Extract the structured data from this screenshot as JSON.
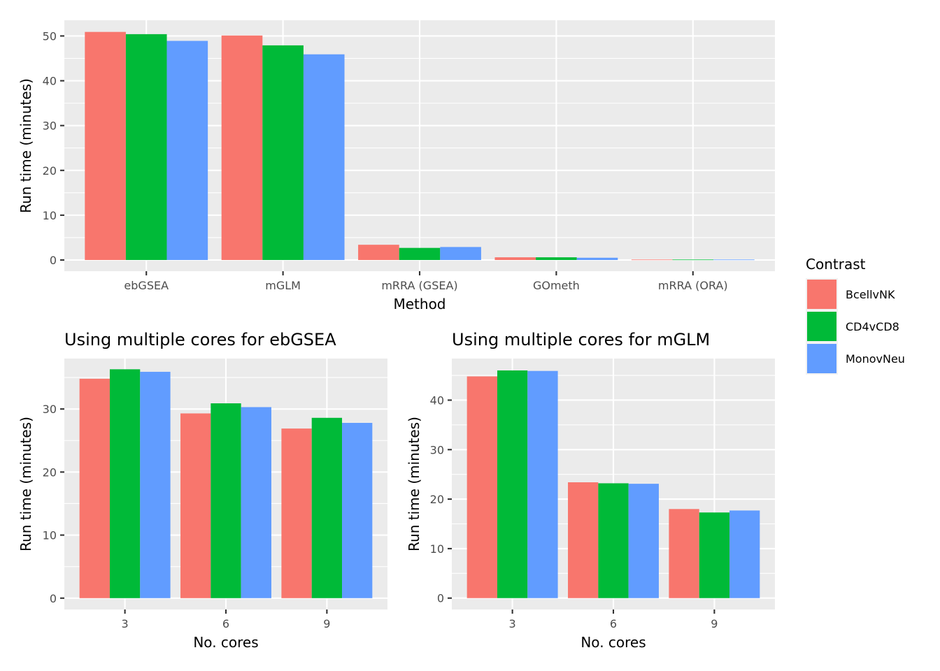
{
  "chart_data": [
    {
      "type": "bar",
      "title": "",
      "xlabel": "Method",
      "ylabel": "Run time (minutes)",
      "categories": [
        "ebGSEA",
        "mGLM",
        "mRRA (GSEA)",
        "GOmeth",
        "mRRA (ORA)"
      ],
      "ylim": [
        -2.5,
        53.5
      ],
      "yticks": [
        "0",
        "10",
        "20",
        "30",
        "40",
        "50"
      ],
      "yticks_values": [
        0,
        10,
        20,
        30,
        40,
        50
      ],
      "grid": true,
      "legend_position": "right",
      "series": [
        {
          "name": "BcellvNK",
          "values": [
            50.9,
            50.1,
            3.4,
            0.6,
            0.1
          ]
        },
        {
          "name": "CD4vCD8",
          "values": [
            50.4,
            47.9,
            2.7,
            0.6,
            0.1
          ]
        },
        {
          "name": "MonovNeu",
          "values": [
            48.9,
            45.9,
            2.9,
            0.5,
            0.1
          ]
        }
      ]
    },
    {
      "type": "bar",
      "title": "Using multiple cores for ebGSEA",
      "xlabel": "No. cores",
      "ylabel": "Run time (minutes)",
      "categories": [
        "3",
        "6",
        "9"
      ],
      "ylim": [
        -1.8,
        38.0
      ],
      "yticks": [
        "0",
        "10",
        "20",
        "30"
      ],
      "yticks_values": [
        0,
        10,
        20,
        30
      ],
      "grid": true,
      "series": [
        {
          "name": "BcellvNK",
          "values": [
            34.8,
            29.3,
            26.9
          ]
        },
        {
          "name": "CD4vCD8",
          "values": [
            36.3,
            30.9,
            28.6
          ]
        },
        {
          "name": "MonovNeu",
          "values": [
            35.9,
            30.3,
            27.8
          ]
        }
      ]
    },
    {
      "type": "bar",
      "title": "Using multiple cores for mGLM",
      "xlabel": "No. cores",
      "ylabel": "Run time (minutes)",
      "categories": [
        "3",
        "6",
        "9"
      ],
      "ylim": [
        -2.3,
        48.4
      ],
      "yticks": [
        "0",
        "10",
        "20",
        "30",
        "40"
      ],
      "yticks_values": [
        0,
        10,
        20,
        30,
        40
      ],
      "grid": true,
      "series": [
        {
          "name": "BcellvNK",
          "values": [
            44.8,
            23.4,
            18.0
          ]
        },
        {
          "name": "CD4vCD8",
          "values": [
            46.0,
            23.2,
            17.3
          ]
        },
        {
          "name": "MonovNeu",
          "values": [
            45.9,
            23.1,
            17.7
          ]
        }
      ]
    }
  ],
  "legend": {
    "title": "Contrast",
    "entries": [
      "BcellvNK",
      "CD4vCD8",
      "MonovNeu"
    ]
  },
  "colors": {
    "BcellvNK": "#F8766D",
    "CD4vCD8": "#00BA38",
    "MonovNeu": "#619CFF",
    "panel": "#EBEBEB",
    "grid": "#FFFFFF"
  }
}
